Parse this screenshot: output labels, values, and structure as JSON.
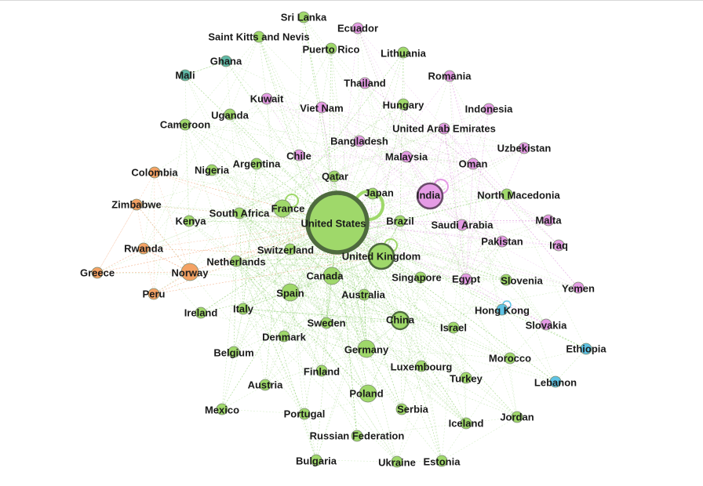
{
  "colors": {
    "green": "#9fd86a",
    "pink": "#e59be5",
    "orange": "#f4a264",
    "teal": "#5fb8a6",
    "blue": "#5ec3e5",
    "edge_green": "#8fd070",
    "edge_pink": "#e3a3e3",
    "edge_orange": "#f2a070"
  },
  "nodes": [
    {
      "id": "united-states",
      "label": "United States",
      "group": "green",
      "size": "xl"
    },
    {
      "id": "india",
      "label": "India",
      "group": "pink",
      "size": "l"
    },
    {
      "id": "united-kingdom",
      "label": "United Kingdom",
      "group": "green",
      "size": "l"
    },
    {
      "id": "france",
      "label": "France",
      "group": "green",
      "size": "m"
    },
    {
      "id": "china",
      "label": "China",
      "group": "green",
      "size": "m"
    },
    {
      "id": "germany",
      "label": "Germany",
      "group": "green",
      "size": "m"
    },
    {
      "id": "canada",
      "label": "Canada",
      "group": "green",
      "size": "m"
    },
    {
      "id": "spain",
      "label": "Spain",
      "group": "green",
      "size": "m"
    },
    {
      "id": "poland",
      "label": "Poland",
      "group": "green",
      "size": "m"
    },
    {
      "id": "japan",
      "label": "Japan",
      "group": "green",
      "size": "s"
    },
    {
      "id": "brazil",
      "label": "Brazil",
      "group": "green",
      "size": "s"
    },
    {
      "id": "switzerland",
      "label": "Switzerland",
      "group": "green",
      "size": "s"
    },
    {
      "id": "australia",
      "label": "Australia",
      "group": "green",
      "size": "s"
    },
    {
      "id": "netherlands",
      "label": "Netherlands",
      "group": "green",
      "size": "s"
    },
    {
      "id": "south-africa",
      "label": "South Africa",
      "group": "green",
      "size": "s"
    },
    {
      "id": "sweden",
      "label": "Sweden",
      "group": "green",
      "size": "s"
    },
    {
      "id": "italy",
      "label": "Italy",
      "group": "green",
      "size": "s"
    },
    {
      "id": "denmark",
      "label": "Denmark",
      "group": "green",
      "size": "s"
    },
    {
      "id": "singapore",
      "label": "Singapore",
      "group": "green",
      "size": "s"
    },
    {
      "id": "qatar",
      "label": "Qatar",
      "group": "green",
      "size": "s"
    },
    {
      "id": "argentina",
      "label": "Argentina",
      "group": "green",
      "size": "s"
    },
    {
      "id": "nigeria",
      "label": "Nigeria",
      "group": "green",
      "size": "s"
    },
    {
      "id": "kenya",
      "label": "Kenya",
      "group": "green",
      "size": "s"
    },
    {
      "id": "uganda",
      "label": "Uganda",
      "group": "green",
      "size": "s"
    },
    {
      "id": "cameroon",
      "label": "Cameroon",
      "group": "green",
      "size": "s"
    },
    {
      "id": "ireland",
      "label": "Ireland",
      "group": "green",
      "size": "s"
    },
    {
      "id": "belgium",
      "label": "Belgium",
      "group": "green",
      "size": "s"
    },
    {
      "id": "austria",
      "label": "Austria",
      "group": "green",
      "size": "s"
    },
    {
      "id": "finland",
      "label": "Finland",
      "group": "green",
      "size": "s"
    },
    {
      "id": "mexico",
      "label": "Mexico",
      "group": "green",
      "size": "s"
    },
    {
      "id": "portugal",
      "label": "Portugal",
      "group": "green",
      "size": "s"
    },
    {
      "id": "russian-federation",
      "label": "Russian Federation",
      "group": "green",
      "size": "s"
    },
    {
      "id": "bulgaria",
      "label": "Bulgaria",
      "group": "green",
      "size": "s"
    },
    {
      "id": "ukraine",
      "label": "Ukraine",
      "group": "green",
      "size": "s"
    },
    {
      "id": "estonia",
      "label": "Estonia",
      "group": "green",
      "size": "s"
    },
    {
      "id": "serbia",
      "label": "Serbia",
      "group": "green",
      "size": "s"
    },
    {
      "id": "iceland",
      "label": "Iceland",
      "group": "green",
      "size": "s"
    },
    {
      "id": "luxembourg",
      "label": "Luxembourg",
      "group": "green",
      "size": "s"
    },
    {
      "id": "turkey",
      "label": "Turkey",
      "group": "green",
      "size": "s"
    },
    {
      "id": "israel",
      "label": "Israel",
      "group": "green",
      "size": "s"
    },
    {
      "id": "morocco",
      "label": "Morocco",
      "group": "green",
      "size": "s"
    },
    {
      "id": "jordan",
      "label": "Jordan",
      "group": "green",
      "size": "s"
    },
    {
      "id": "slovenia",
      "label": "Slovenia",
      "group": "green",
      "size": "s"
    },
    {
      "id": "north-macedonia",
      "label": "North Macedonia",
      "group": "green",
      "size": "s"
    },
    {
      "id": "hungary",
      "label": "Hungary",
      "group": "green",
      "size": "s"
    },
    {
      "id": "lithuania",
      "label": "Lithuania",
      "group": "green",
      "size": "s"
    },
    {
      "id": "sri-lanka",
      "label": "Sri Lanka",
      "group": "green",
      "size": "s"
    },
    {
      "id": "saint-kitts-and-nevis",
      "label": "Saint Kitts and Nevis",
      "group": "green",
      "size": "s"
    },
    {
      "id": "puerto-rico",
      "label": "Puerto Rico",
      "group": "green",
      "size": "s"
    },
    {
      "id": "ghana",
      "label": "Ghana",
      "group": "teal",
      "size": "s"
    },
    {
      "id": "mali",
      "label": "Mali",
      "group": "teal",
      "size": "s"
    },
    {
      "id": "colombia",
      "label": "Colombia",
      "group": "orange",
      "size": "s"
    },
    {
      "id": "zimbabwe",
      "label": "Zimbabwe",
      "group": "orange",
      "size": "s"
    },
    {
      "id": "rwanda",
      "label": "Rwanda",
      "group": "orange",
      "size": "s"
    },
    {
      "id": "greece",
      "label": "Greece",
      "group": "orange",
      "size": "s"
    },
    {
      "id": "norway",
      "label": "Norway",
      "group": "orange",
      "size": "m"
    },
    {
      "id": "peru",
      "label": "Peru",
      "group": "orange",
      "size": "s"
    },
    {
      "id": "ecuador",
      "label": "Ecuador",
      "group": "pink",
      "size": "s"
    },
    {
      "id": "thailand",
      "label": "Thailand",
      "group": "pink",
      "size": "s"
    },
    {
      "id": "romania",
      "label": "Romania",
      "group": "pink",
      "size": "s"
    },
    {
      "id": "kuwait",
      "label": "Kuwait",
      "group": "pink",
      "size": "s"
    },
    {
      "id": "viet-nam",
      "label": "Viet Nam",
      "group": "pink",
      "size": "s"
    },
    {
      "id": "indonesia",
      "label": "Indonesia",
      "group": "pink",
      "size": "s"
    },
    {
      "id": "united-arab-emirates",
      "label": "United Arab Emirates",
      "group": "pink",
      "size": "s"
    },
    {
      "id": "bangladesh",
      "label": "Bangladesh",
      "group": "pink",
      "size": "s"
    },
    {
      "id": "uzbekistan",
      "label": "Uzbekistan",
      "group": "pink",
      "size": "s"
    },
    {
      "id": "chile",
      "label": "Chile",
      "group": "pink",
      "size": "s"
    },
    {
      "id": "malaysia",
      "label": "Malaysia",
      "group": "pink",
      "size": "s"
    },
    {
      "id": "oman",
      "label": "Oman",
      "group": "pink",
      "size": "s"
    },
    {
      "id": "saudi-arabia",
      "label": "Saudi Arabia",
      "group": "pink",
      "size": "s"
    },
    {
      "id": "malta",
      "label": "Malta",
      "group": "pink",
      "size": "s"
    },
    {
      "id": "pakistan",
      "label": "Pakistan",
      "group": "pink",
      "size": "s"
    },
    {
      "id": "iraq",
      "label": "Iraq",
      "group": "pink",
      "size": "s"
    },
    {
      "id": "egypt",
      "label": "Egypt",
      "group": "pink",
      "size": "s"
    },
    {
      "id": "yemen",
      "label": "Yemen",
      "group": "pink",
      "size": "s"
    },
    {
      "id": "slovakia",
      "label": "Slovakia",
      "group": "pink",
      "size": "s"
    },
    {
      "id": "hong-kong",
      "label": "Hong Kong",
      "group": "blue",
      "size": "s"
    },
    {
      "id": "ethiopia",
      "label": "Ethiopia",
      "group": "blue",
      "size": "s"
    },
    {
      "id": "lebanon",
      "label": "Lebanon",
      "group": "blue",
      "size": "s"
    }
  ]
}
